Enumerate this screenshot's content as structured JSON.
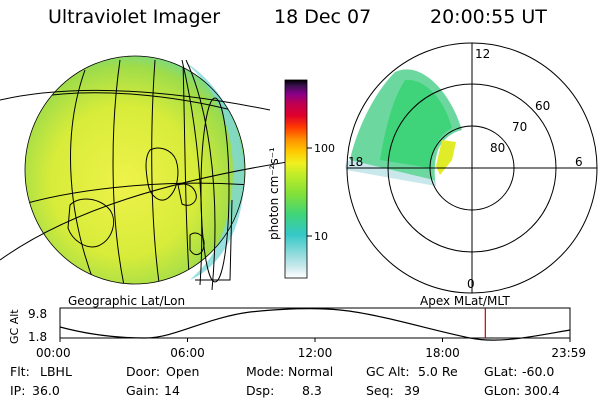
{
  "header": {
    "instrument": "Ultraviolet Imager",
    "date": "18 Dec 07",
    "time": "20:00:55 UT"
  },
  "colorbar": {
    "unit_label": "photon cm⁻²s⁻¹",
    "tick_100": "100",
    "tick_10": "10",
    "colors": [
      "#ffffff",
      "#c8e8ec",
      "#7fd8d8",
      "#35c8c8",
      "#3fd47a",
      "#7fe03a",
      "#c0ec28",
      "#f0f020",
      "#ffc800",
      "#ff9000",
      "#ff3c00",
      "#e0002a",
      "#c00050",
      "#88008a",
      "#3c1050",
      "#000000"
    ]
  },
  "geo_panel": {
    "label": "Geographic Lat/Lon"
  },
  "polar_panel": {
    "label": "Apex  MLat/MLT",
    "mlt_labels": {
      "top": "12",
      "left": "18",
      "right": "6",
      "bottom": "0"
    },
    "lat_labels": [
      "60",
      "70",
      "80"
    ]
  },
  "timeline": {
    "axis_label": "GC Alt",
    "y_max": "9.8",
    "y_min": "1.8",
    "ticks": [
      "00:00",
      "06:00",
      "12:00",
      "18:00",
      "23:59"
    ],
    "current_hour": 20.015,
    "marker_color": "#cc0000"
  },
  "status": {
    "row1": [
      {
        "label": "Flt:",
        "value": "LBHL"
      },
      {
        "label": "Door:",
        "value": "Open"
      },
      {
        "label": "Mode:",
        "value": "Normal"
      },
      {
        "label": "GC Alt:",
        "value": "5.0 Re"
      },
      {
        "label": "GLat:",
        "value": "-60.0"
      }
    ],
    "row2": [
      {
        "label": "IP:",
        "value": "36.0"
      },
      {
        "label": "Gain:",
        "value": "14"
      },
      {
        "label": "Dsp:",
        "value": "8.3"
      },
      {
        "label": "Seq:",
        "value": "39"
      },
      {
        "label": "GLon:",
        "value": "300.4"
      }
    ]
  }
}
